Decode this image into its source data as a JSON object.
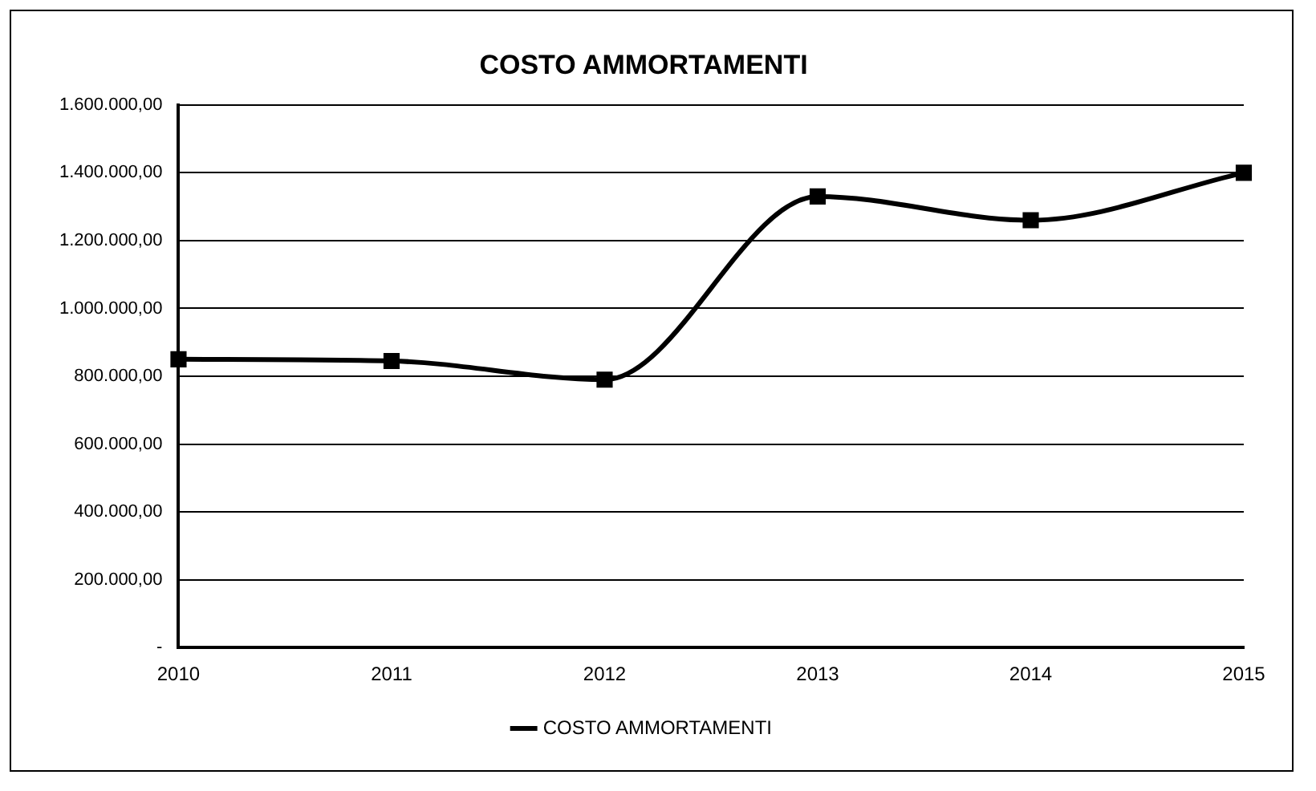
{
  "chart_data": {
    "type": "line",
    "title": "COSTO AMMORTAMENTI",
    "categories": [
      "2010",
      "2011",
      "2012",
      "2013",
      "2014",
      "2015"
    ],
    "series": [
      {
        "name": "COSTO AMMORTAMENTI",
        "color": "#000000",
        "values": [
          850000,
          845000,
          790000,
          1330000,
          1260000,
          1400000
        ]
      }
    ],
    "ylim": [
      0,
      1600000
    ],
    "yticks": [
      {
        "value": 0,
        "label": "-"
      },
      {
        "value": 200000,
        "label": "200.000,00"
      },
      {
        "value": 400000,
        "label": "400.000,00"
      },
      {
        "value": 600000,
        "label": "600.000,00"
      },
      {
        "value": 800000,
        "label": "800.000,00"
      },
      {
        "value": 1000000,
        "label": "1.000.000,00"
      },
      {
        "value": 1200000,
        "label": "1.200.000,00"
      },
      {
        "value": 1400000,
        "label": "1.400.000,00"
      },
      {
        "value": 1600000,
        "label": "1.600.000,00"
      }
    ],
    "grid": "y",
    "legend": "bottom",
    "marker": "square",
    "line_style": "solid"
  }
}
